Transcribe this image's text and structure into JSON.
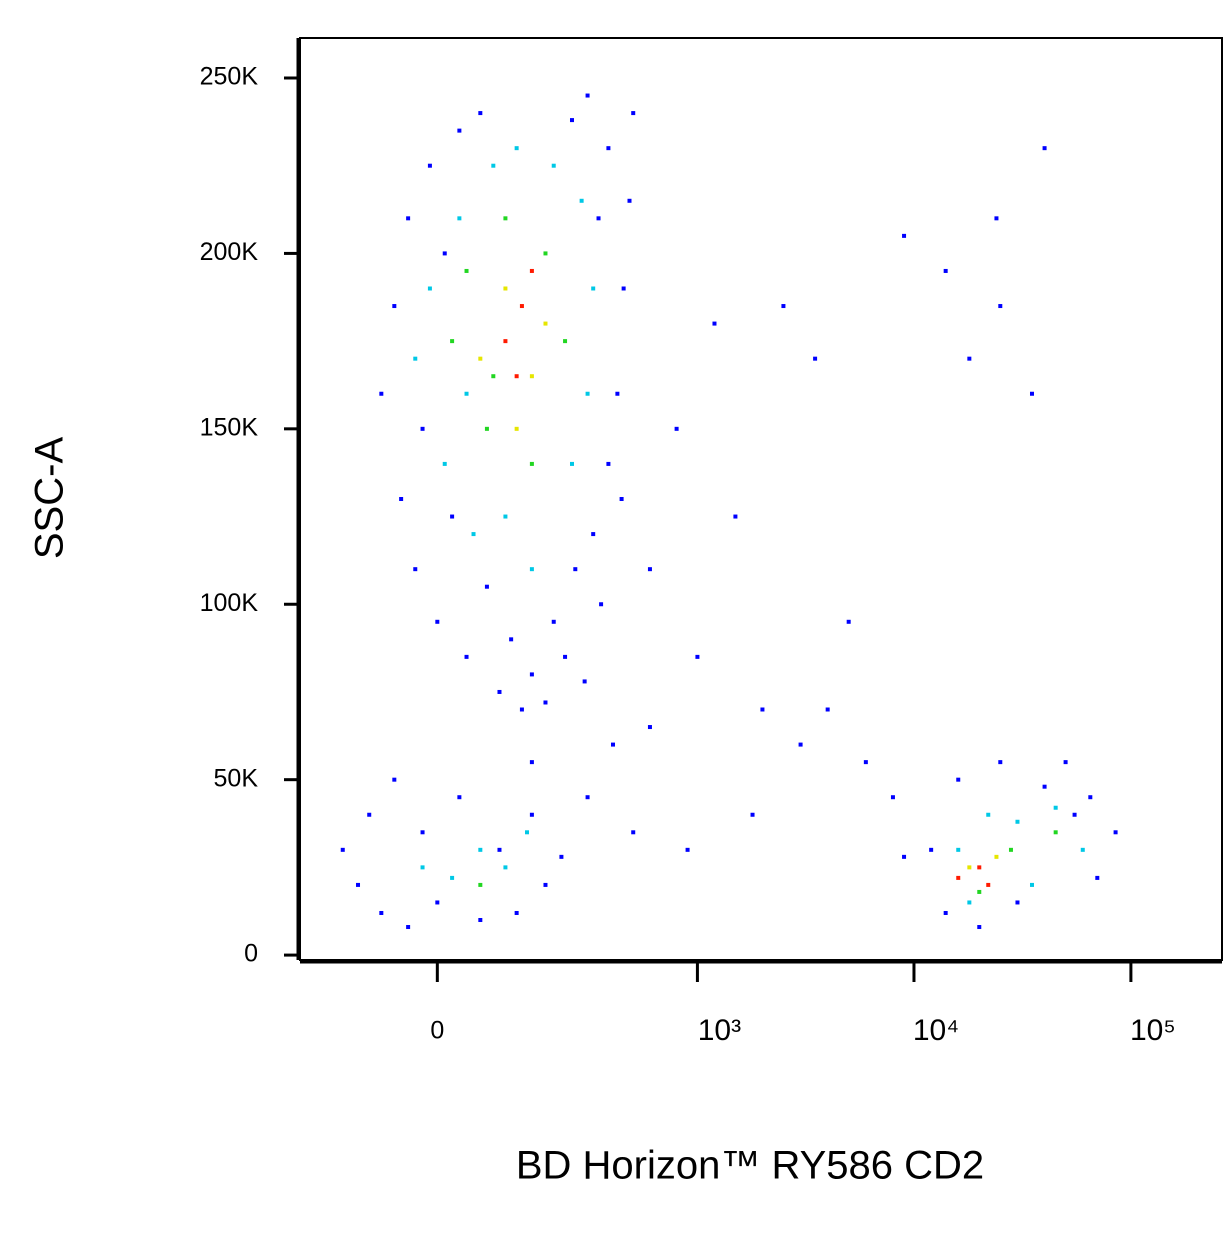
{
  "chart_data": {
    "type": "scatter",
    "xlabel": "BD Horizon™ RY586 CD2",
    "ylabel": "SSC-A",
    "x_scale": "biex",
    "xlim": [
      -258,
      263000
    ],
    "ylim": [
      -1400,
      261400
    ],
    "xticks": [
      0,
      {
        "value": 1000,
        "label": "10³"
      },
      {
        "value": 10000,
        "label": "10⁴"
      },
      {
        "value": 100000,
        "label": "10⁵"
      }
    ],
    "yticks": [
      0,
      {
        "value": 50000,
        "label": "50K"
      },
      {
        "value": 100000,
        "label": "100K"
      },
      {
        "value": 150000,
        "label": "150K"
      },
      {
        "value": 200000,
        "label": "200K"
      },
      {
        "value": 250000,
        "label": "250K"
      }
    ],
    "series": [
      {
        "color": "#0000ff",
        "x": [
          -80,
          -60,
          -50,
          -40,
          -30,
          -20,
          -10,
          0,
          10,
          20,
          30,
          40,
          60,
          70,
          90,
          110,
          130,
          150,
          180,
          200,
          230,
          260,
          290,
          320,
          350,
          380,
          420,
          450,
          480,
          500,
          380,
          300,
          250,
          340,
          440,
          600,
          800,
          1200,
          1500,
          2500,
          3000,
          1000,
          2000,
          4000,
          6000,
          8000,
          1800,
          900,
          500,
          300,
          -150,
          -120,
          -100,
          -80,
          -60,
          -40,
          -20,
          0,
          30,
          60,
          90,
          120,
          150,
          180,
          220,
          14000,
          16000,
          20000,
          25000,
          30000,
          40000,
          55000,
          70000,
          85000,
          12000,
          9000,
          50000,
          65000,
          14000,
          24000,
          40000,
          18000,
          25000,
          35000,
          9000,
          3500,
          5000,
          600,
          400,
          150
        ],
        "values": [
          160000,
          185000,
          130000,
          210000,
          110000,
          150000,
          225000,
          95000,
          200000,
          125000,
          235000,
          85000,
          240000,
          105000,
          75000,
          90000,
          70000,
          80000,
          72000,
          95000,
          85000,
          110000,
          78000,
          120000,
          100000,
          140000,
          160000,
          190000,
          215000,
          240000,
          230000,
          245000,
          238000,
          210000,
          130000,
          110000,
          150000,
          180000,
          125000,
          185000,
          60000,
          85000,
          70000,
          70000,
          55000,
          45000,
          40000,
          30000,
          35000,
          45000,
          30000,
          20000,
          40000,
          12000,
          50000,
          8000,
          35000,
          15000,
          45000,
          10000,
          30000,
          12000,
          40000,
          20000,
          28000,
          12000,
          50000,
          8000,
          55000,
          15000,
          48000,
          40000,
          22000,
          35000,
          30000,
          28000,
          55000,
          45000,
          195000,
          210000,
          230000,
          170000,
          185000,
          160000,
          205000,
          170000,
          95000,
          65000,
          60000,
          55000
        ]
      },
      {
        "color": "#00c8e6",
        "x": [
          -30,
          -10,
          10,
          30,
          50,
          80,
          120,
          200,
          280,
          320,
          300,
          250,
          40,
          100,
          150,
          60,
          20,
          100,
          -20,
          140,
          16000,
          22000,
          30000,
          45000,
          60000,
          18000,
          35000
        ],
        "values": [
          170000,
          190000,
          140000,
          210000,
          120000,
          225000,
          230000,
          225000,
          215000,
          190000,
          160000,
          140000,
          160000,
          125000,
          110000,
          30000,
          22000,
          25000,
          25000,
          35000,
          30000,
          40000,
          38000,
          42000,
          30000,
          15000,
          20000
        ]
      },
      {
        "color": "#22d622",
        "x": [
          20,
          40,
          70,
          100,
          180,
          230,
          150,
          80,
          60,
          45000,
          28000,
          20000
        ],
        "values": [
          175000,
          195000,
          150000,
          210000,
          200000,
          175000,
          140000,
          165000,
          20000,
          35000,
          30000,
          18000
        ]
      },
      {
        "color": "#e6e600",
        "x": [
          60,
          100,
          150,
          180,
          120,
          18000,
          24000
        ],
        "values": [
          170000,
          190000,
          165000,
          180000,
          150000,
          25000,
          28000
        ]
      },
      {
        "color": "#ff1a00",
        "x": [
          100,
          130,
          120,
          150,
          16000,
          20000,
          22000
        ],
        "values": [
          175000,
          185000,
          165000,
          195000,
          22000,
          25000,
          20000
        ]
      }
    ]
  }
}
